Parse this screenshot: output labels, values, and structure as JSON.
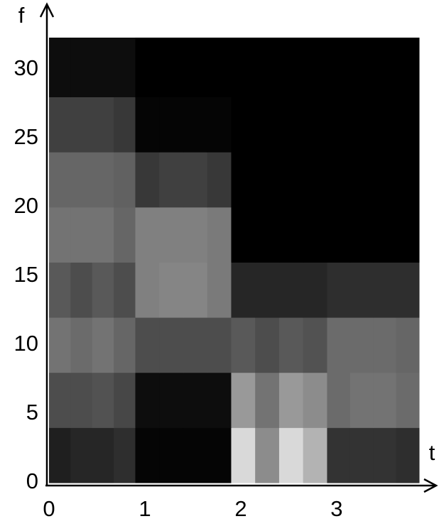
{
  "chart_data": {
    "type": "heatmap",
    "xlabel": "t",
    "ylabel": "f",
    "xlim": [
      0,
      3.86
    ],
    "ylim": [
      0,
      32.3
    ],
    "xticks": [
      0,
      1,
      2,
      3
    ],
    "yticks": [
      0,
      5,
      10,
      15,
      20,
      25,
      30
    ],
    "xbins": [
      0,
      0.225,
      0.45,
      0.675,
      0.9,
      1.15,
      1.4,
      1.65,
      1.9,
      2.15,
      2.4,
      2.65,
      2.9,
      3.14,
      3.38,
      3.62,
      3.86
    ],
    "ybins": [
      0,
      4,
      8,
      12,
      16,
      20,
      24,
      28,
      32.3
    ],
    "values": [
      [
        0.12,
        0.15,
        0.15,
        0.18,
        0.02,
        0.02,
        0.02,
        0.02,
        0.85,
        0.55,
        0.85,
        0.7,
        0.2,
        0.2,
        0.2,
        0.18
      ],
      [
        0.3,
        0.3,
        0.32,
        0.28,
        0.05,
        0.05,
        0.05,
        0.05,
        0.6,
        0.45,
        0.6,
        0.55,
        0.42,
        0.45,
        0.45,
        0.42
      ],
      [
        0.45,
        0.42,
        0.45,
        0.4,
        0.3,
        0.3,
        0.3,
        0.3,
        0.35,
        0.3,
        0.35,
        0.32,
        0.42,
        0.42,
        0.42,
        0.4
      ],
      [
        0.35,
        0.3,
        0.35,
        0.3,
        0.5,
        0.52,
        0.52,
        0.48,
        0.15,
        0.15,
        0.15,
        0.15,
        0.18,
        0.18,
        0.18,
        0.18
      ],
      [
        0.45,
        0.45,
        0.45,
        0.4,
        0.5,
        0.5,
        0.5,
        0.48,
        0,
        0,
        0,
        0,
        0,
        0,
        0,
        0
      ],
      [
        0.4,
        0.4,
        0.4,
        0.38,
        0.22,
        0.25,
        0.25,
        0.22,
        0,
        0,
        0,
        0,
        0,
        0,
        0,
        0
      ],
      [
        0.25,
        0.25,
        0.25,
        0.22,
        0.02,
        0.02,
        0.02,
        0.02,
        0,
        0,
        0,
        0,
        0,
        0,
        0,
        0
      ],
      [
        0.05,
        0.05,
        0.05,
        0.05,
        0,
        0,
        0,
        0,
        0,
        0,
        0,
        0,
        0,
        0,
        0,
        0
      ]
    ]
  }
}
